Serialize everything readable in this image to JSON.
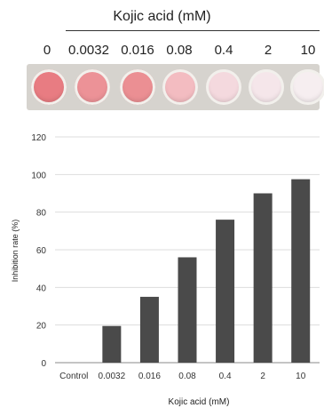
{
  "header": {
    "title": "Kojic acid (mM)",
    "concentrations": [
      "0",
      "0.0032",
      "0.016",
      "0.08",
      "0.4",
      "2",
      "10"
    ]
  },
  "plate": {
    "well_colors": [
      "#e87c82",
      "#ec9297",
      "#eb8f93",
      "#f3bcc1",
      "#f4d9de",
      "#f5e6ea",
      "#f6eef0"
    ]
  },
  "chart_data": {
    "type": "bar",
    "categories": [
      "Control",
      "0.0032",
      "0.016",
      "0.08",
      "0.4",
      "2",
      "10"
    ],
    "values": [
      0,
      19.5,
      35,
      56,
      76,
      90,
      97.5
    ],
    "title": "",
    "xlabel": "Kojic acid (mM)",
    "ylabel": "Inhibition rate (%)",
    "ylim": [
      0,
      120
    ],
    "yticks": [
      "0",
      "20",
      "40",
      "60",
      "80",
      "100",
      "120"
    ],
    "grid": true,
    "bar_color": "#4a4a4a"
  }
}
